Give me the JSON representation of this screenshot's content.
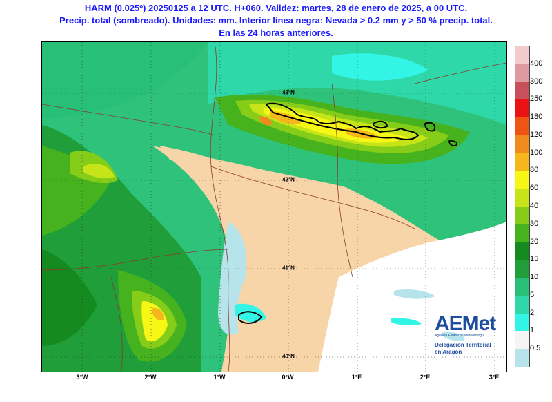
{
  "header": {
    "line1": "HARM (0.025º) 20250125 a 12 UTC. H+060. Validez: martes, 28 de enero de 2025, a 00 UTC.",
    "line2": "Precip. total (sombreado). Unidades: mm. Interior línea negra: Nevada > 0.2 mm y > 50 % precip. total.",
    "line3": "En las 24 horas anteriores."
  },
  "axes": {
    "lon_labels": [
      "3°W",
      "2°W",
      "1°W",
      "0°W",
      "1°E",
      "2°E",
      "3°E"
    ],
    "lat_labels": [
      "43°N",
      "42°N",
      "41°N",
      "40°N"
    ]
  },
  "colorbar": {
    "levels": [
      "0.5",
      "1",
      "2",
      "5",
      "10",
      "15",
      "20",
      "30",
      "40",
      "60",
      "80",
      "100",
      "120",
      "180",
      "250",
      "300",
      "400"
    ],
    "colors": [
      "#b7e3ea",
      "#f5f5f5",
      "#33f5e6",
      "#2ed8a8",
      "#28c078",
      "#1f9e3a",
      "#158a1e",
      "#46b21e",
      "#86cd1a",
      "#c6e418",
      "#f7f716",
      "#f5b71c",
      "#f08a1c",
      "#ee5515",
      "#ea1212",
      "#c8505a",
      "#dd9aa0",
      "#f2cccc"
    ]
  },
  "logo": {
    "name": "AEMet",
    "subtitle": "Agencia Estatal de Meteorología",
    "delegation_line1": "Delegación Territorial",
    "delegation_line2": "en Aragón"
  }
}
